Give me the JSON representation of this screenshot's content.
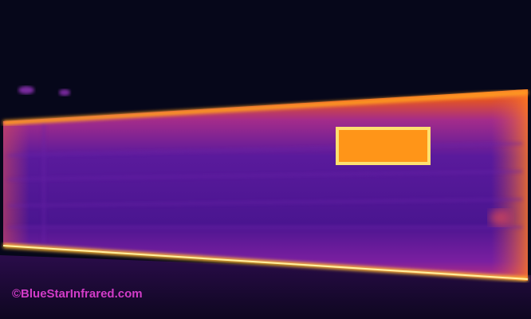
{
  "watermark": "©BlueStarInfrared.com"
}
